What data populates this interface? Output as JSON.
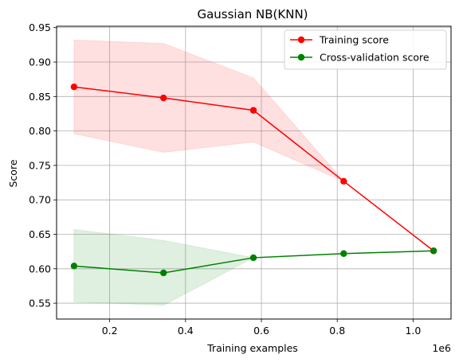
{
  "chart_data": {
    "type": "line",
    "title": "Gaussian NB(KNN)",
    "xlabel": "Training examples",
    "ylabel": "Score",
    "x_offset_label": "1e6",
    "xlim": [
      0.06,
      1.1
    ],
    "ylim": [
      0.527,
      0.952
    ],
    "x_ticks": [
      0.2,
      0.4,
      0.6,
      0.8,
      1.0
    ],
    "x_tick_labels": [
      "0.2",
      "0.4",
      "0.6",
      "0.8",
      "1.0"
    ],
    "y_ticks": [
      0.55,
      0.6,
      0.65,
      0.7,
      0.75,
      0.8,
      0.85,
      0.9,
      0.95
    ],
    "y_tick_labels": [
      "0.55",
      "0.60",
      "0.65",
      "0.70",
      "0.75",
      "0.80",
      "0.85",
      "0.90",
      "0.95"
    ],
    "grid": true,
    "legend_position": "top-right",
    "x": [
      0.106,
      0.342,
      0.579,
      0.817,
      1.054
    ],
    "series": [
      {
        "name": "Training score",
        "color": "#ff0000",
        "band_color": "#ff0000",
        "values": [
          0.864,
          0.848,
          0.83,
          0.727,
          0.626
        ],
        "band_upper": [
          0.932,
          0.927,
          0.877,
          0.727,
          0.626
        ],
        "band_lower": [
          0.796,
          0.769,
          0.784,
          0.727,
          0.626
        ]
      },
      {
        "name": "Cross-validation score",
        "color": "#008000",
        "band_color": "#008000",
        "values": [
          0.604,
          0.594,
          0.616,
          0.622,
          0.626
        ],
        "band_upper": [
          0.657,
          0.641,
          0.616,
          0.622,
          0.626
        ],
        "band_lower": [
          0.552,
          0.547,
          0.616,
          0.622,
          0.626
        ]
      }
    ]
  }
}
